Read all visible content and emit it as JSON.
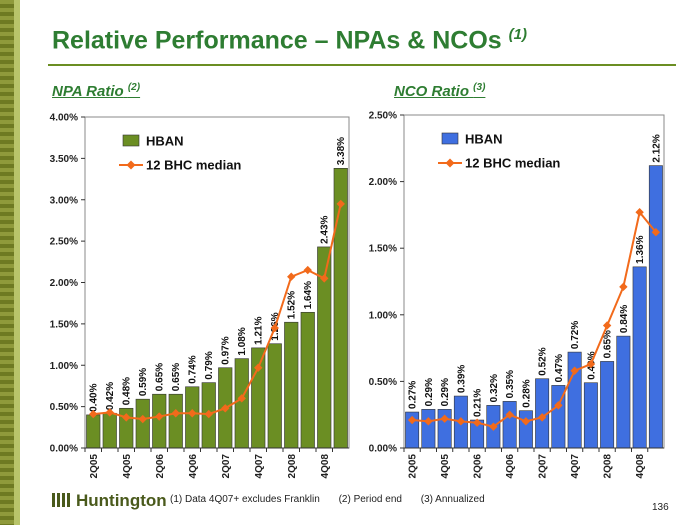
{
  "title": "Relative Performance – NPAs & NCOs",
  "title_note": "(1)",
  "npa_heading": "NPA Ratio",
  "npa_heading_note": "(2)",
  "nco_heading": "NCO Ratio",
  "nco_heading_note": "(3)",
  "logo_text": "Huntington",
  "footnotes": [
    "(1)  Data 4Q07+ excludes Franklin",
    "(2)   Period end",
    "(3)  Annualized"
  ],
  "page_number": "136",
  "colors": {
    "npa_bar": "#6b8e23",
    "nco_bar": "#3f6fe0",
    "median_line": "#f26a1b",
    "title": "#2e7d32"
  },
  "chart_data": [
    {
      "type": "bar",
      "name": "npa-chart",
      "categories": [
        "2Q05",
        "3Q05",
        "4Q05",
        "1Q06",
        "2Q06",
        "3Q06",
        "4Q06",
        "1Q07",
        "2Q07",
        "3Q07",
        "4Q07",
        "1Q08",
        "2Q08",
        "3Q08",
        "4Q08",
        "1Q09"
      ],
      "tick_labels": [
        "2Q05",
        "",
        "4Q05",
        "",
        "2Q06",
        "",
        "4Q06",
        "",
        "2Q07",
        "",
        "4Q07",
        "",
        "2Q08",
        "",
        "4Q08",
        ""
      ],
      "ylim": [
        0,
        4.0
      ],
      "yticks": [
        0,
        0.5,
        1.0,
        1.5,
        2.0,
        2.5,
        3.0,
        3.5,
        4.0
      ],
      "ytick_labels": [
        "0.00%",
        "0.50%",
        "1.00%",
        "1.50%",
        "2.00%",
        "2.50%",
        "3.00%",
        "3.50%",
        "4.00%"
      ],
      "legend_position": "top-left",
      "series": [
        {
          "name": "HBAN",
          "kind": "bar",
          "values": [
            0.4,
            0.42,
            0.48,
            0.59,
            0.65,
            0.65,
            0.74,
            0.79,
            0.97,
            1.08,
            1.21,
            1.26,
            1.52,
            1.64,
            2.43,
            3.38
          ],
          "labels": [
            "0.40%",
            "0.42%",
            "0.48%",
            "0.59%",
            "0.65%",
            "0.65%",
            "0.74%",
            "0.79%",
            "0.97%",
            "1.08%",
            "1.21%",
            "1.26%",
            "1.52%",
            "1.64%",
            "2.43%",
            "3.38%"
          ]
        },
        {
          "name": "12 BHC median",
          "kind": "line",
          "values": [
            0.41,
            0.43,
            0.37,
            0.35,
            0.38,
            0.42,
            0.42,
            0.41,
            0.48,
            0.6,
            0.97,
            1.45,
            2.07,
            2.15,
            2.05,
            2.95
          ]
        }
      ]
    },
    {
      "type": "bar",
      "name": "nco-chart",
      "categories": [
        "2Q05",
        "3Q05",
        "4Q05",
        "1Q06",
        "2Q06",
        "3Q06",
        "4Q06",
        "1Q07",
        "2Q07",
        "3Q07",
        "4Q07",
        "1Q08",
        "2Q08",
        "3Q08",
        "4Q08",
        "1Q09"
      ],
      "tick_labels": [
        "2Q05",
        "",
        "4Q05",
        "",
        "2Q06",
        "",
        "4Q06",
        "",
        "2Q07",
        "",
        "4Q07",
        "",
        "2Q08",
        "",
        "4Q08",
        ""
      ],
      "ylim": [
        0,
        2.5
      ],
      "yticks": [
        0,
        0.5,
        1.0,
        1.5,
        2.0,
        2.5
      ],
      "ytick_labels": [
        "0.00%",
        "0.50%",
        "1.00%",
        "1.50%",
        "2.00%",
        "2.50%"
      ],
      "legend_position": "top-left",
      "series": [
        {
          "name": "HBAN",
          "kind": "bar",
          "values": [
            0.27,
            0.29,
            0.29,
            0.39,
            0.21,
            0.32,
            0.35,
            0.28,
            0.52,
            0.47,
            0.72,
            0.49,
            0.65,
            0.84,
            1.36,
            2.12
          ],
          "labels": [
            "0.27%",
            "0.29%",
            "0.29%",
            "0.39%",
            "0.21%",
            "0.32%",
            "0.35%",
            "0.28%",
            "0.52%",
            "0.47%",
            "0.72%",
            "0.49%",
            "0.65%",
            "0.84%",
            "1.36%",
            "2.12%"
          ]
        },
        {
          "name": "12 BHC median",
          "kind": "line",
          "values": [
            0.21,
            0.2,
            0.22,
            0.2,
            0.19,
            0.16,
            0.25,
            0.2,
            0.23,
            0.32,
            0.58,
            0.63,
            0.92,
            1.21,
            1.77,
            1.62
          ]
        }
      ]
    }
  ]
}
